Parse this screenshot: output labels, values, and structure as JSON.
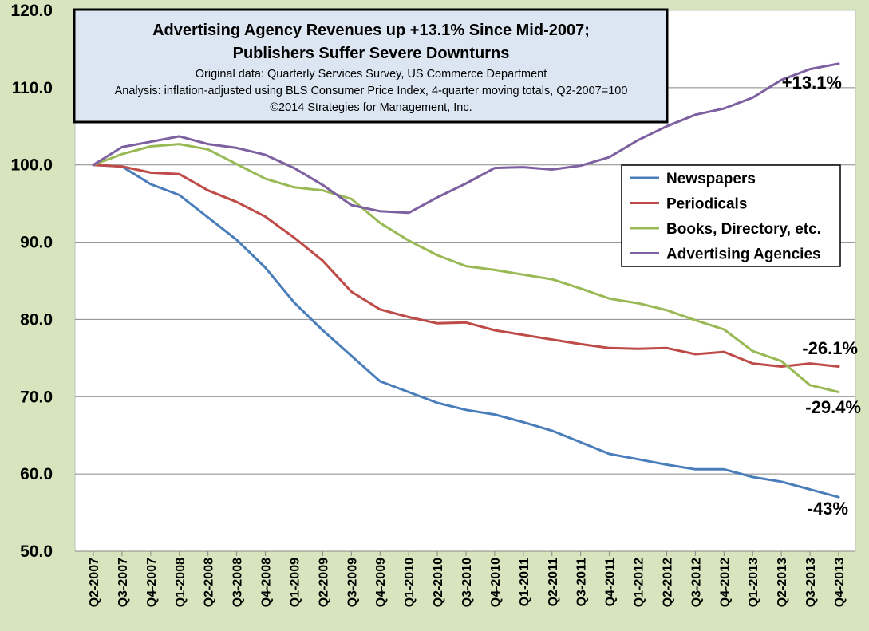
{
  "chart_data": {
    "type": "line",
    "title_lines": [
      "Advertising Agency Revenues up +13.1% Since Mid-2007;",
      "Publishers Suffer Severe Downturns"
    ],
    "subtitle_lines": [
      "Original data: Quarterly Services Survey, US Commerce Department",
      "Analysis: inflation-adjusted using BLS Consumer Price Index, 4-quarter moving totals, Q2-2007=100",
      "©2014 Strategies for Management, Inc."
    ],
    "ylim": [
      50,
      120
    ],
    "yticks": [
      50,
      60,
      70,
      80,
      90,
      100,
      110,
      120
    ],
    "ytick_labels": [
      "50.0",
      "60.0",
      "70.0",
      "80.0",
      "90.0",
      "100.0",
      "110.0",
      "120.0"
    ],
    "grid": "horizontal",
    "legend_position": "right-middle",
    "categories": [
      "Q2-2007",
      "Q3-2007",
      "Q4-2007",
      "Q1-2008",
      "Q2-2008",
      "Q3-2008",
      "Q4-2008",
      "Q1-2009",
      "Q2-2009",
      "Q3-2009",
      "Q4-2009",
      "Q1-2010",
      "Q2-2010",
      "Q3-2010",
      "Q4-2010",
      "Q1-2011",
      "Q2-2011",
      "Q3-2011",
      "Q4-2011",
      "Q1-2012",
      "Q2-2012",
      "Q3-2012",
      "Q4-2012",
      "Q1-2013",
      "Q2-2013",
      "Q3-2013",
      "Q4-2013"
    ],
    "series": [
      {
        "name": "Newspapers",
        "color": "#4a7ebb",
        "values": [
          100.0,
          99.8,
          97.5,
          96.1,
          93.2,
          90.3,
          86.7,
          82.2,
          78.6,
          75.3,
          72.0,
          70.6,
          69.2,
          68.3,
          67.7,
          66.7,
          65.6,
          64.1,
          62.6,
          61.9,
          61.2,
          60.6,
          60.6,
          59.6,
          59.0,
          58.0,
          57.0
        ],
        "end_label": "-43%"
      },
      {
        "name": "Periodicals",
        "color": "#be4b48",
        "values": [
          100.0,
          99.8,
          99.0,
          98.8,
          96.7,
          95.2,
          93.3,
          90.6,
          87.6,
          83.6,
          81.3,
          80.3,
          79.5,
          79.6,
          78.6,
          78.0,
          77.4,
          76.8,
          76.3,
          76.2,
          76.3,
          75.5,
          75.8,
          74.3,
          73.9,
          74.3,
          73.9
        ],
        "end_label": "-26.1%"
      },
      {
        "name": "Books, Directory, etc.",
        "color": "#98b954",
        "values": [
          100.0,
          101.4,
          102.4,
          102.7,
          102.0,
          100.1,
          98.2,
          97.1,
          96.7,
          95.6,
          92.5,
          90.2,
          88.3,
          86.9,
          86.4,
          85.8,
          85.2,
          84.0,
          82.7,
          82.1,
          81.2,
          79.9,
          78.7,
          75.9,
          74.6,
          71.5,
          70.6
        ],
        "end_label": "-29.4%"
      },
      {
        "name": "Advertising Agencies",
        "color": "#7d60a0",
        "values": [
          100.0,
          102.3,
          103.0,
          103.7,
          102.7,
          102.2,
          101.3,
          99.6,
          97.4,
          94.8,
          94.0,
          93.8,
          95.8,
          97.6,
          99.6,
          99.7,
          99.4,
          99.9,
          101.0,
          103.2,
          105.0,
          106.5,
          107.3,
          108.7,
          111.0,
          112.4,
          113.1
        ],
        "end_label": "+13.1%"
      }
    ]
  }
}
